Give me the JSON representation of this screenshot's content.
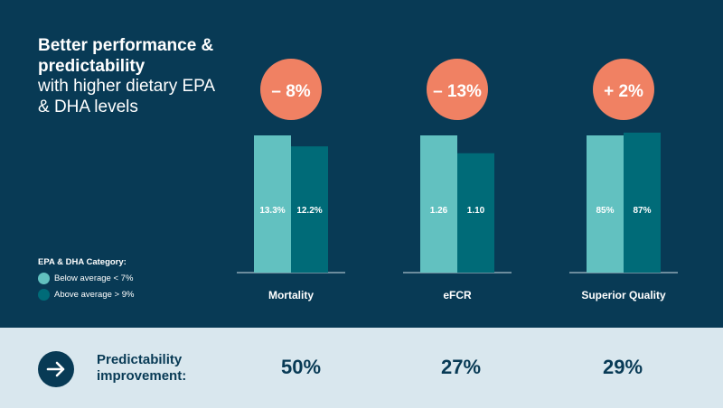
{
  "header": {
    "title_bold": "Better performance & predictability",
    "title_light": "with higher dietary EPA & DHA levels"
  },
  "legend": {
    "title": "EPA & DHA Category:",
    "items": [
      {
        "label": "Below average < 7%",
        "color": "#62c1c0"
      },
      {
        "label": "Above average > 9%",
        "color": "#006b78"
      }
    ]
  },
  "badge_color": "#f08163",
  "chart_data": {
    "type": "bar",
    "categories": [
      "Mortality",
      "eFCR",
      "Superior Quality"
    ],
    "series": [
      {
        "name": "Below average < 7%",
        "color": "#62c1c0",
        "labels": [
          "13.3%",
          "1.26",
          "85%"
        ],
        "relative": [
          1.0,
          1.0,
          1.0
        ]
      },
      {
        "name": "Above average > 9%",
        "color": "#006b78",
        "labels": [
          "12.2%",
          "1.10",
          "87%"
        ],
        "relative": [
          0.92,
          0.87,
          1.02
        ]
      }
    ],
    "badges": [
      "– 8%",
      "– 13%",
      "+ 2%"
    ]
  },
  "predictability": {
    "label": "Predictability improvement:",
    "values": [
      "50%",
      "27%",
      "29%"
    ]
  }
}
